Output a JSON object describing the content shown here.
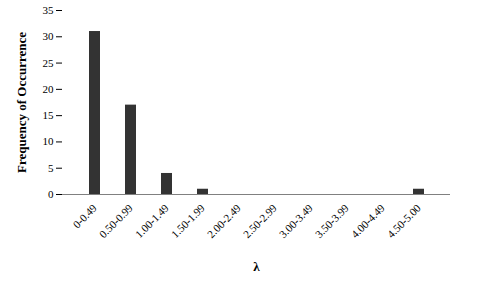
{
  "chart_data": {
    "type": "bar",
    "categories": [
      "0-0.49",
      "0.50-0.99",
      "1.00-1.49",
      "1.50-1.99",
      "2.00-2.49",
      "2.50-2.99",
      "3.00-3.49",
      "3.50-3.99",
      "4.00-4.49",
      "4.50-5.00"
    ],
    "values": [
      31,
      17,
      4,
      1,
      0,
      0,
      0,
      0,
      0,
      1
    ],
    "color": "#333333",
    "x_label": "λ",
    "y_label": "Frequency of Occurrence",
    "ylim": [
      0,
      35
    ],
    "yticks": [
      0,
      5,
      10,
      15,
      20,
      25,
      30,
      35
    ],
    "grid": false
  }
}
